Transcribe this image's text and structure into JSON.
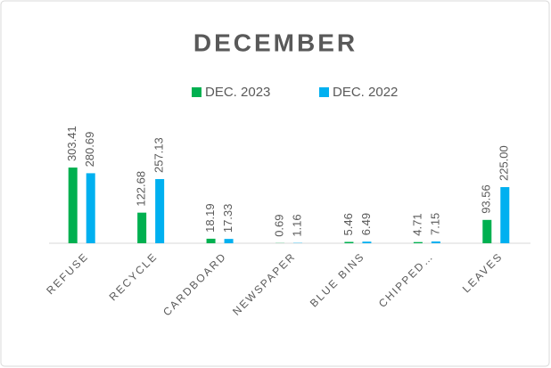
{
  "chart_data": {
    "type": "bar",
    "title": "DECEMBER",
    "categories": [
      "REFUSE",
      "RECYCLE",
      "CARDBOARD",
      "NEWSPAPER",
      "BLUE BINS",
      "CHIPPED…",
      "LEAVES"
    ],
    "series": [
      {
        "name": "DEC. 2023",
        "color": "#00b050",
        "values": [
          303.41,
          122.68,
          18.19,
          0.69,
          5.46,
          4.71,
          93.56
        ],
        "value_labels": [
          "303.41",
          "122.68",
          "18.19",
          "0.69",
          "5.46",
          "4.71",
          "93.56"
        ]
      },
      {
        "name": "DEC. 2022",
        "color": "#00b0f0",
        "values": [
          280.69,
          257.13,
          17.33,
          1.16,
          6.49,
          7.15,
          225
        ],
        "value_labels": [
          "280.69",
          "257.13",
          "17.33",
          "1.16",
          "6.49",
          "7.15",
          "225.00"
        ]
      }
    ],
    "legend": "top"
  }
}
